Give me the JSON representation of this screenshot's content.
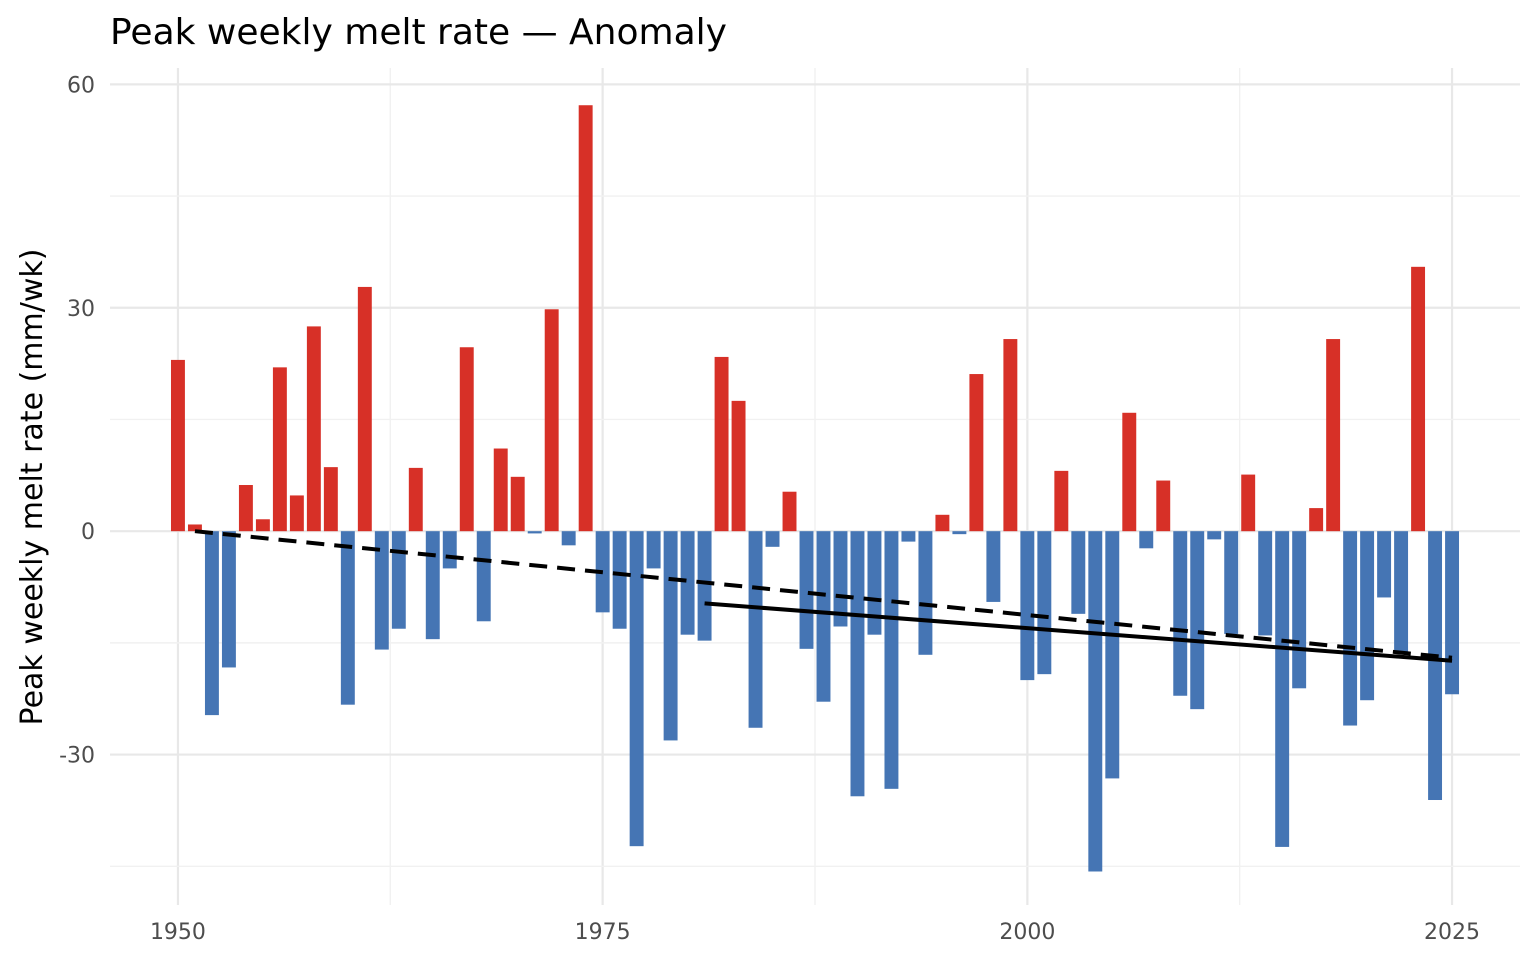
{
  "chart_data": {
    "type": "bar",
    "title": "Peak weekly melt rate — Anomaly",
    "xlabel": "",
    "ylabel": "Peak weekly melt rate (mm/wk)",
    "xlim": [
      1946,
      2029
    ],
    "ylim": [
      -50.2,
      62.2
    ],
    "x_ticks": [
      1950,
      1975,
      2000,
      2025
    ],
    "x_tick_labels": [
      "1950",
      "1975",
      "2000",
      "2025"
    ],
    "y_ticks": [
      -30,
      0,
      30,
      60
    ],
    "y_tick_labels": [
      "-30",
      "0",
      "30",
      "60"
    ],
    "grid": true,
    "legend": "none",
    "colors": {
      "positive": "#d73027",
      "negative": "#4575b4",
      "trend": "#000000"
    },
    "x": [
      1950,
      1951,
      1952,
      1953,
      1954,
      1955,
      1956,
      1957,
      1958,
      1959,
      1960,
      1961,
      1962,
      1963,
      1964,
      1965,
      1966,
      1967,
      1968,
      1969,
      1970,
      1971,
      1972,
      1973,
      1974,
      1975,
      1976,
      1977,
      1978,
      1979,
      1980,
      1981,
      1982,
      1983,
      1984,
      1985,
      1986,
      1987,
      1988,
      1989,
      1990,
      1991,
      1992,
      1993,
      1994,
      1995,
      1996,
      1997,
      1998,
      1999,
      2000,
      2001,
      2002,
      2003,
      2004,
      2005,
      2006,
      2007,
      2008,
      2009,
      2010,
      2011,
      2012,
      2013,
      2014,
      2015,
      2016,
      2017,
      2018,
      2019,
      2020,
      2021,
      2022,
      2023,
      2024,
      2025
    ],
    "values": [
      23.0,
      0.9,
      -24.7,
      -18.3,
      6.2,
      1.6,
      22.0,
      4.8,
      27.5,
      8.6,
      -23.3,
      32.8,
      -15.9,
      -13.1,
      8.5,
      -14.5,
      -5.0,
      24.7,
      -12.1,
      11.1,
      7.3,
      -0.3,
      29.8,
      -1.9,
      57.2,
      -10.9,
      -13.1,
      -42.3,
      -5.0,
      -28.1,
      -13.9,
      -14.7,
      23.4,
      17.5,
      -26.4,
      -2.1,
      5.3,
      -15.8,
      -22.9,
      -12.8,
      -35.6,
      -13.9,
      -34.6,
      -1.4,
      -16.6,
      2.2,
      -0.4,
      21.1,
      -9.5,
      25.8,
      -20.0,
      -19.2,
      8.1,
      -11.1,
      -45.7,
      -33.2,
      15.9,
      -2.3,
      6.8,
      -22.1,
      -23.9,
      -1.1,
      -13.8,
      7.6,
      -14.0,
      -42.4,
      -21.1,
      3.1,
      25.8,
      -26.1,
      -22.7,
      -8.9,
      -16.4,
      35.5,
      -36.1,
      -21.9
    ],
    "trend_lines": [
      {
        "style": "dashed",
        "x": [
          1951,
          2025
        ],
        "y": [
          0.0,
          -17.0
        ]
      },
      {
        "style": "solid",
        "x": [
          1981,
          2025
        ],
        "y": [
          -9.7,
          -17.4
        ]
      }
    ]
  }
}
